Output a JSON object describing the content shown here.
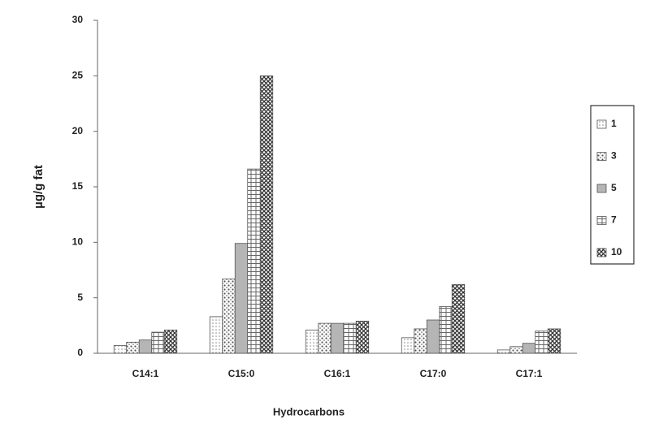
{
  "chart_data": {
    "type": "bar",
    "x_label": "Hydrocarbons",
    "y_label": "µg/g  fat",
    "categories": [
      "C14:1",
      "C15:0",
      "C16:1",
      "C17:0",
      "C17:1"
    ],
    "series": [
      {
        "name": "1",
        "color": "#e8e8e8",
        "values": [
          0.7,
          3.3,
          2.1,
          1.4,
          0.3
        ]
      },
      {
        "name": "3",
        "color": "#f2f2f2",
        "values": [
          1.0,
          6.7,
          2.7,
          2.2,
          0.6
        ]
      },
      {
        "name": "5",
        "color": "#b0b0b0",
        "values": [
          1.2,
          9.9,
          2.7,
          3.0,
          0.9
        ]
      },
      {
        "name": "7",
        "color": "#d8d8d8",
        "values": [
          1.9,
          16.6,
          2.7,
          4.2,
          2.0
        ]
      },
      {
        "name": "10",
        "color": "#9a9a9a",
        "values": [
          2.1,
          25.0,
          2.9,
          6.2,
          2.2
        ]
      }
    ],
    "ylim": [
      0,
      30
    ],
    "yticks": [
      0,
      5,
      10,
      15,
      20,
      25,
      30
    ],
    "legend": "right"
  }
}
